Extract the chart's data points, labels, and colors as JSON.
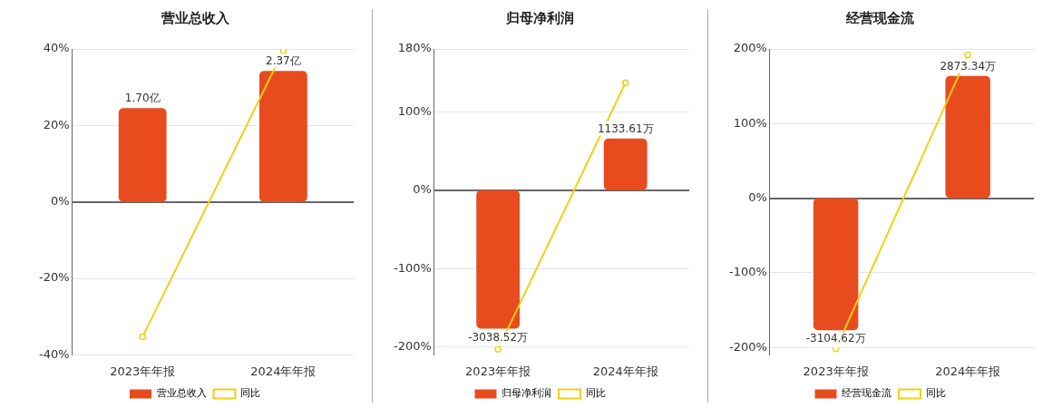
{
  "chart_data": [
    {
      "type": "bar",
      "title": "营业总收入",
      "categories": [
        "2023年年报",
        "2024年年报"
      ],
      "ylim": [
        -40,
        40
      ],
      "yticks": [
        {
          "value": -40,
          "label": "-40%"
        },
        {
          "value": -20,
          "label": "-20%"
        },
        {
          "value": 0,
          "label": "0%"
        },
        {
          "value": 20,
          "label": "20%"
        },
        {
          "value": 40,
          "label": "40%"
        }
      ],
      "y2lim": [
        -2.77,
        2.77
      ],
      "grid": "y",
      "legend": "bottom",
      "tick_labels": "xy",
      "series": [
        {
          "name": "营业总收入",
          "axis": "y2",
          "color": "#e84c1e",
          "values": [
            1.7,
            2.37
          ],
          "value_labels": [
            "1.70亿",
            "2.37亿"
          ]
        },
        {
          "name": "同比",
          "type": "line",
          "color": "#f2cf15",
          "marker": "circle",
          "values": [
            -35.3,
            39.5
          ]
        }
      ]
    },
    {
      "type": "bar",
      "title": "归母净利润",
      "categories": [
        "2023年年报",
        "2024年年报"
      ],
      "ylim": [
        -210,
        180
      ],
      "yticks": [
        {
          "value": -200,
          "label": "-200%"
        },
        {
          "value": -100,
          "label": "-100%"
        },
        {
          "value": 0,
          "label": "0%"
        },
        {
          "value": 100,
          "label": "100%"
        },
        {
          "value": 180,
          "label": "180%"
        }
      ],
      "y2lim": [
        -3612,
        3096
      ],
      "grid": "y",
      "legend": "bottom",
      "tick_labels": "xy",
      "series": [
        {
          "name": "归母净利润",
          "axis": "y2",
          "color": "#e84c1e",
          "values": [
            -3038.52,
            1133.61
          ],
          "value_labels": [
            "-3038.52万",
            "1133.61万"
          ]
        },
        {
          "name": "同比",
          "type": "line",
          "color": "#f2cf15",
          "marker": "circle",
          "values": [
            -203,
            137
          ]
        }
      ]
    },
    {
      "type": "bar",
      "title": "经营现金流",
      "categories": [
        "2023年年报",
        "2024年年报"
      ],
      "ylim": [
        -210,
        200
      ],
      "yticks": [
        {
          "value": -200,
          "label": "-200%"
        },
        {
          "value": -100,
          "label": "-100%"
        },
        {
          "value": 0,
          "label": "0%"
        },
        {
          "value": 100,
          "label": "100%"
        },
        {
          "value": 200,
          "label": "200%"
        }
      ],
      "y2lim": [
        -3686,
        3510
      ],
      "grid": "y",
      "legend": "bottom",
      "tick_labels": "xy",
      "series": [
        {
          "name": "经营现金流",
          "axis": "y2",
          "color": "#e84c1e",
          "values": [
            -3104.62,
            2873.34
          ],
          "value_labels": [
            "-3104.62万",
            "2873.34万"
          ]
        },
        {
          "name": "同比",
          "type": "line",
          "color": "#f2cf15",
          "marker": "circle",
          "values": [
            -202,
            192
          ]
        }
      ]
    }
  ]
}
